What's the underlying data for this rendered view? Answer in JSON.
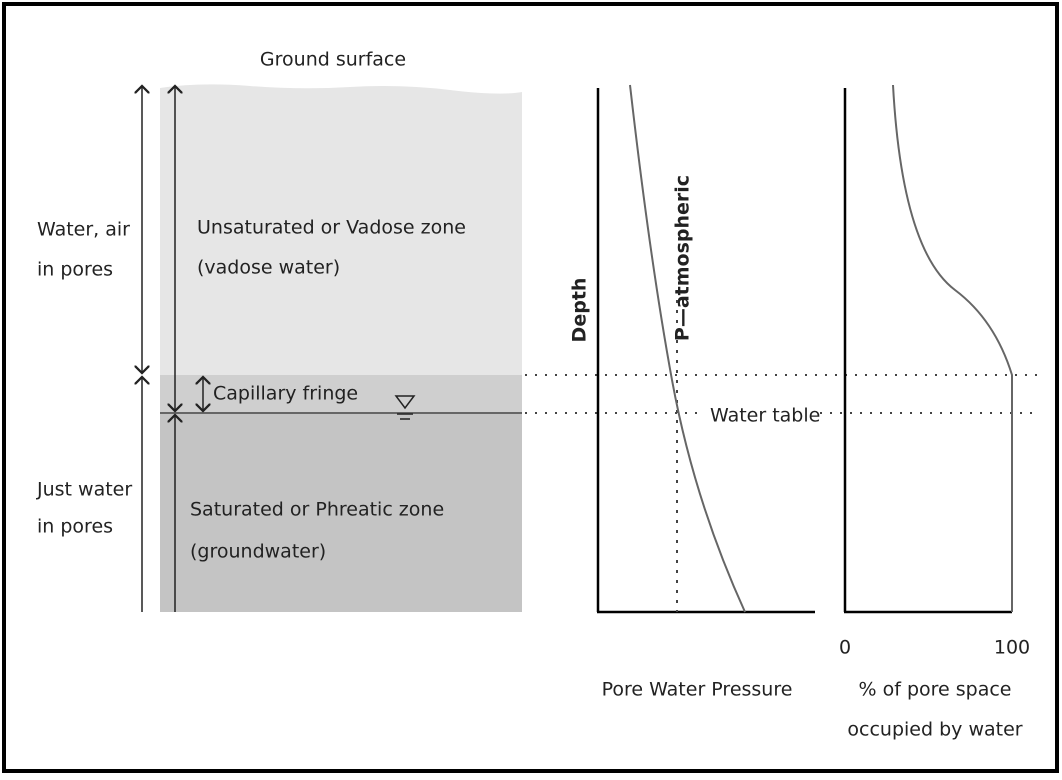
{
  "zones": {
    "ground_surface": "Ground surface",
    "unsaturated": {
      "side_label": [
        "Water, air",
        "in pores"
      ],
      "label": [
        "Unsaturated or Vadose zone",
        "(vadose water)"
      ]
    },
    "capillary_fringe": "Capillary fringe",
    "saturated": {
      "side_label": [
        "Just water",
        "in pores"
      ],
      "label": [
        "Saturated or Phreatic zone",
        "(groundwater)"
      ]
    }
  },
  "pressure_graph": {
    "y_label": "Depth",
    "reference_label": "P—atmospheric",
    "water_table_label": "Water table",
    "x_label": "Pore Water Pressure"
  },
  "saturation_graph": {
    "x_min": 0,
    "x_max": 100,
    "x_label": [
      "% of pore space",
      "occupied by water"
    ]
  }
}
